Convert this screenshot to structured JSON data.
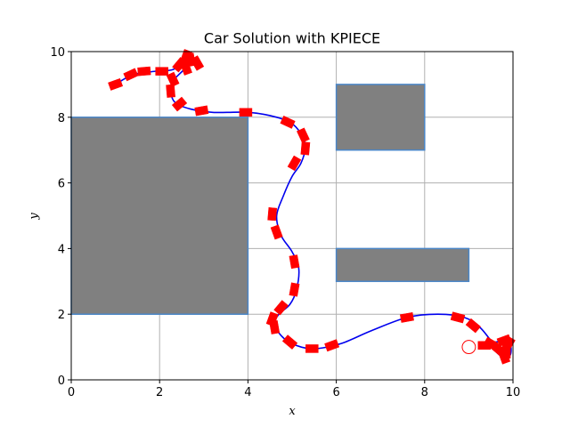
{
  "chart_data": {
    "type": "scatter",
    "title": "Car Solution with KPIECE",
    "xlabel": "x",
    "ylabel": "y",
    "xlim": [
      0,
      10
    ],
    "ylim": [
      0,
      10
    ],
    "xticks": [
      0,
      2,
      4,
      6,
      8,
      10
    ],
    "yticks": [
      0,
      2,
      4,
      6,
      8,
      10
    ],
    "grid": true,
    "colors": {
      "obstacle_fill": "#808080",
      "obstacle_edge": "#4a86c8",
      "path": "#0000ee",
      "state": "#ff0000",
      "grid": "#b0b0b0"
    },
    "obstacles": [
      {
        "x0": 0,
        "y0": 2,
        "x1": 4,
        "y1": 8
      },
      {
        "x0": 6,
        "y0": 7,
        "x1": 8,
        "y1": 9
      },
      {
        "x0": 6,
        "y0": 3,
        "x1": 9,
        "y1": 4
      }
    ],
    "path": [
      [
        1.0,
        9.0
      ],
      [
        1.4,
        9.3
      ],
      [
        1.9,
        9.4
      ],
      [
        2.3,
        9.45
      ],
      [
        2.55,
        9.7
      ],
      [
        2.7,
        9.9
      ],
      [
        2.75,
        9.75
      ],
      [
        2.55,
        9.45
      ],
      [
        2.3,
        9.1
      ],
      [
        2.25,
        8.8
      ],
      [
        2.35,
        8.45
      ],
      [
        2.7,
        8.25
      ],
      [
        3.2,
        8.15
      ],
      [
        4.0,
        8.15
      ],
      [
        4.5,
        8.05
      ],
      [
        4.95,
        7.85
      ],
      [
        5.2,
        7.5
      ],
      [
        5.3,
        7.1
      ],
      [
        5.2,
        6.6
      ],
      [
        5.0,
        6.2
      ],
      [
        4.8,
        5.6
      ],
      [
        4.65,
        5.0
      ],
      [
        4.75,
        4.4
      ],
      [
        5.0,
        3.9
      ],
      [
        5.15,
        3.4
      ],
      [
        5.1,
        2.75
      ],
      [
        4.95,
        2.3
      ],
      [
        4.7,
        2.0
      ],
      [
        4.6,
        1.7
      ],
      [
        4.75,
        1.35
      ],
      [
        5.0,
        1.1
      ],
      [
        5.4,
        0.95
      ],
      [
        5.8,
        1.0
      ],
      [
        6.2,
        1.15
      ],
      [
        6.8,
        1.5
      ],
      [
        7.6,
        1.9
      ],
      [
        8.3,
        2.0
      ],
      [
        8.9,
        1.9
      ],
      [
        9.25,
        1.6
      ],
      [
        9.5,
        1.2
      ],
      [
        9.7,
        0.95
      ],
      [
        9.85,
        0.65
      ],
      [
        9.7,
        0.75
      ],
      [
        9.5,
        1.0
      ],
      [
        9.3,
        1.1
      ],
      [
        9.6,
        1.15
      ],
      [
        9.9,
        1.2
      ],
      [
        9.95,
        0.8
      ],
      [
        9.8,
        0.6
      ],
      [
        9.9,
        0.9
      ],
      [
        9.9,
        1.05
      ]
    ],
    "states": [
      {
        "x": 1.0,
        "y": 9.0,
        "angle": 20
      },
      {
        "x": 1.35,
        "y": 9.3,
        "angle": 25
      },
      {
        "x": 1.65,
        "y": 9.4,
        "angle": 5
      },
      {
        "x": 2.05,
        "y": 9.4,
        "angle": 0
      },
      {
        "x": 2.45,
        "y": 9.6,
        "angle": 50
      },
      {
        "x": 2.6,
        "y": 9.85,
        "angle": 70
      },
      {
        "x": 2.7,
        "y": 9.75,
        "angle": -80
      },
      {
        "x": 2.85,
        "y": 9.65,
        "angle": -60
      },
      {
        "x": 2.6,
        "y": 9.5,
        "angle": 110
      },
      {
        "x": 2.3,
        "y": 9.15,
        "angle": 115
      },
      {
        "x": 2.25,
        "y": 8.8,
        "angle": 95
      },
      {
        "x": 2.45,
        "y": 8.4,
        "angle": 40
      },
      {
        "x": 2.95,
        "y": 8.2,
        "angle": 10
      },
      {
        "x": 3.95,
        "y": 8.15,
        "angle": 0
      },
      {
        "x": 4.9,
        "y": 7.85,
        "angle": -25
      },
      {
        "x": 5.25,
        "y": 7.45,
        "angle": -65
      },
      {
        "x": 5.3,
        "y": 7.05,
        "angle": -95
      },
      {
        "x": 5.05,
        "y": 6.6,
        "angle": -120
      },
      {
        "x": 4.55,
        "y": 5.05,
        "angle": -95
      },
      {
        "x": 4.65,
        "y": 4.5,
        "angle": -70
      },
      {
        "x": 5.05,
        "y": 3.6,
        "angle": -80
      },
      {
        "x": 5.05,
        "y": 2.75,
        "angle": -100
      },
      {
        "x": 4.75,
        "y": 2.2,
        "angle": -130
      },
      {
        "x": 4.55,
        "y": 1.85,
        "angle": -110
      },
      {
        "x": 4.6,
        "y": 1.6,
        "angle": -80
      },
      {
        "x": 4.95,
        "y": 1.15,
        "angle": -40
      },
      {
        "x": 5.45,
        "y": 0.95,
        "angle": 0
      },
      {
        "x": 5.9,
        "y": 1.05,
        "angle": 20
      },
      {
        "x": 7.6,
        "y": 1.9,
        "angle": 10
      },
      {
        "x": 8.75,
        "y": 1.9,
        "angle": -15
      },
      {
        "x": 9.1,
        "y": 1.65,
        "angle": -40
      },
      {
        "x": 9.5,
        "y": 1.1,
        "angle": -30
      },
      {
        "x": 9.65,
        "y": 0.95,
        "angle": -40
      },
      {
        "x": 9.8,
        "y": 0.7,
        "angle": -70
      },
      {
        "x": 9.85,
        "y": 0.85,
        "angle": -90
      },
      {
        "x": 9.9,
        "y": 1.1,
        "angle": 60
      },
      {
        "x": 9.8,
        "y": 1.2,
        "angle": 20
      },
      {
        "x": 9.35,
        "y": 1.05,
        "angle": 0
      }
    ],
    "goal": {
      "x": 9.0,
      "y": 1.0,
      "radius": 0.15
    }
  }
}
